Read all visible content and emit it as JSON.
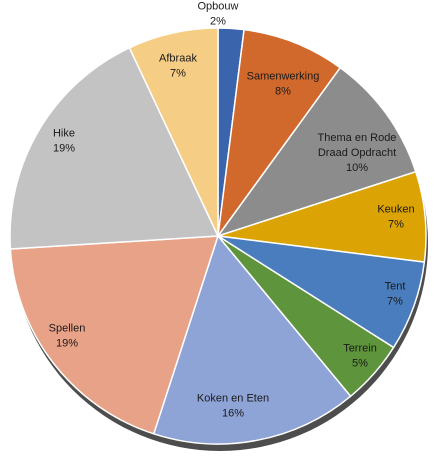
{
  "chart_data": {
    "type": "pie",
    "title": "",
    "categories": [
      "Opbouw",
      "Samenwerking",
      "Thema en Rode Draad Opdracht",
      "Keuken",
      "Tent",
      "Terrein",
      "Koken en Eten",
      "Spellen",
      "Hike",
      "Afbraak"
    ],
    "values": [
      2,
      8,
      10,
      7,
      7,
      5,
      16,
      19,
      19,
      7
    ],
    "labels": [
      [
        "Opbouw",
        "2%"
      ],
      [
        "Samenwerking",
        "8%"
      ],
      [
        "Thema en Rode",
        "Draad Opdracht",
        "10%"
      ],
      [
        "Keuken",
        "7%"
      ],
      [
        "Tent",
        "7%"
      ],
      [
        "Terrein",
        "5%"
      ],
      [
        "Koken en Eten",
        "16%"
      ],
      [
        "Spellen",
        "19%"
      ],
      [
        "Hike",
        "19%"
      ],
      [
        "Afbraak",
        "7%"
      ]
    ],
    "colors": [
      "#3a65ad",
      "#d2692c",
      "#8c8c8c",
      "#dba404",
      "#4a7dbd",
      "#5e943b",
      "#8ea3d6",
      "#e8a287",
      "#c3c3c3",
      "#f6cd85"
    ],
    "start_angle": "12 o'clock",
    "direction": "clockwise",
    "legend": "none",
    "data_labels": "category and percentage"
  }
}
